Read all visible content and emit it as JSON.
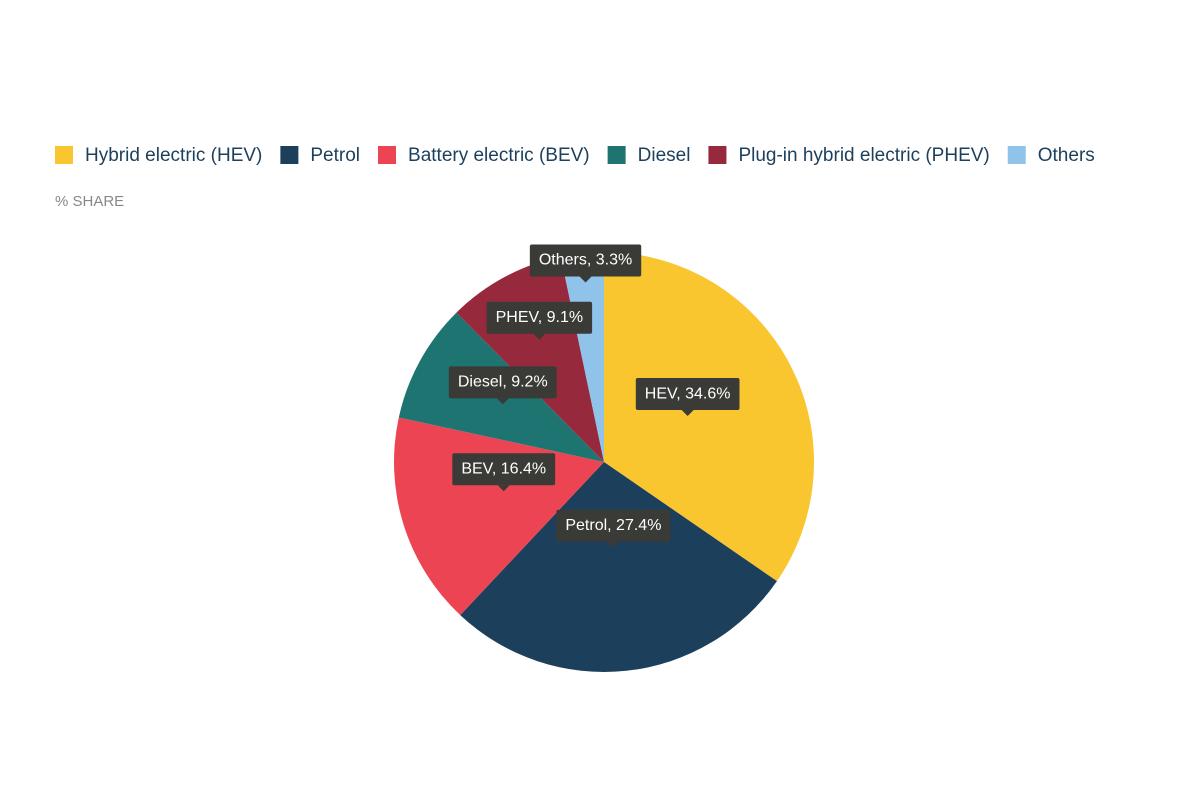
{
  "chart_data": {
    "type": "pie",
    "subtitle": "% SHARE",
    "categories": [
      "Hybrid electric (HEV)",
      "Petrol",
      "Battery electric (BEV)",
      "Diesel",
      "Plug-in hybrid electric (PHEV)",
      "Others"
    ],
    "values": [
      34.6,
      27.4,
      16.4,
      9.2,
      9.1,
      3.3
    ],
    "value_labels": [
      "HEV, 34.6%",
      "Petrol, 27.4%",
      "BEV, 16.4%",
      "Diesel, 9.2%",
      "PHEV, 9.1%",
      "Others, 3.3%"
    ],
    "colors": [
      "#f9c62f",
      "#1c3f5c",
      "#ec4452",
      "#1e7470",
      "#962a3c",
      "#8fc3ea"
    ],
    "legend": "top"
  }
}
